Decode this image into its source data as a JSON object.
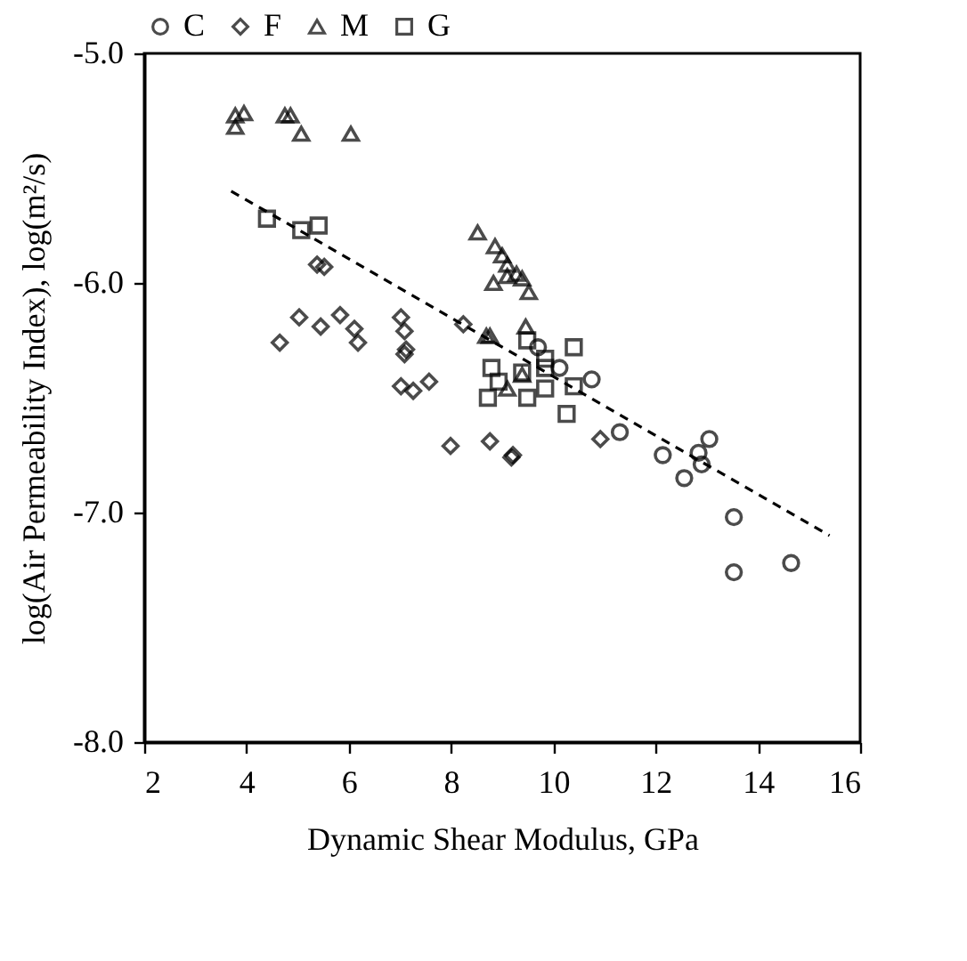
{
  "chart_data": {
    "type": "scatter",
    "xlabel": "Dynamic Shear Modulus, GPa",
    "ylabel": "log(Air Permeability Index), log(m²/s)",
    "xlim": [
      2,
      16
    ],
    "xticks": [
      2,
      4,
      6,
      8,
      10,
      12,
      14,
      16
    ],
    "ylim": [
      -8,
      -5
    ],
    "yticks": [
      {
        "value": -8,
        "label": "-8.0"
      },
      {
        "value": -7,
        "label": "-7.0"
      },
      {
        "value": -6,
        "label": "-6.0"
      },
      {
        "value": -5,
        "label": "-5.0"
      }
    ],
    "grid": false,
    "legend": "top",
    "series": [
      {
        "name": "C",
        "color": "#000000",
        "marker": "circle",
        "x": [
          10.12,
          10.75,
          11.3,
          12.14,
          12.84,
          13.05,
          12.9,
          12.56,
          13.53,
          13.53,
          14.65,
          9.7
        ],
        "values": [
          -6.37,
          -6.42,
          -6.65,
          -6.75,
          -6.74,
          -6.68,
          -6.79,
          -6.85,
          -7.02,
          -7.26,
          -7.22,
          -6.28
        ]
      },
      {
        "name": "F",
        "color": "#000000",
        "marker": "diamond",
        "x": [
          5.38,
          5.52,
          4.65,
          5.03,
          5.45,
          5.83,
          6.11,
          6.18,
          7.02,
          7.09,
          7.12,
          7.09,
          7.02,
          7.26,
          7.57,
          7.99,
          8.76,
          9.18,
          9.21,
          8.24,
          10.92
        ],
        "values": [
          -5.92,
          -5.93,
          -6.26,
          -6.15,
          -6.19,
          -6.14,
          -6.2,
          -6.26,
          -6.15,
          -6.21,
          -6.29,
          -6.31,
          -6.45,
          -6.47,
          -6.43,
          -6.71,
          -6.69,
          -6.76,
          -6.75,
          -6.18,
          -6.68
        ]
      },
      {
        "name": "M",
        "color": "#000000",
        "marker": "triangle",
        "x": [
          3.78,
          3.78,
          3.95,
          4.75,
          4.86,
          5.07,
          6.04,
          8.52,
          8.86,
          9.0,
          9.1,
          9.28,
          9.39,
          9.52,
          8.83,
          9.1,
          8.76,
          9.46,
          9.39,
          9.1,
          8.69
        ],
        "values": [
          -5.27,
          -5.32,
          -5.26,
          -5.27,
          -5.27,
          -5.35,
          -5.35,
          -5.78,
          -5.84,
          -5.88,
          -5.92,
          -5.96,
          -5.98,
          -6.04,
          -6.0,
          -5.97,
          -6.23,
          -6.19,
          -6.4,
          -6.46,
          -6.23
        ]
      },
      {
        "name": "G",
        "color": "#000000",
        "marker": "square",
        "x": [
          4.4,
          5.07,
          5.41,
          9.49,
          10.4,
          8.79,
          9.84,
          9.84,
          9.39,
          8.93,
          9.84,
          10.4,
          8.72,
          9.49,
          10.26
        ],
        "values": [
          -5.72,
          -5.77,
          -5.75,
          -6.25,
          -6.28,
          -6.37,
          -6.33,
          -6.37,
          -6.39,
          -6.43,
          -6.46,
          -6.45,
          -6.5,
          -6.5,
          -6.57
        ]
      },
      {
        "type": "line",
        "color": "#000000",
        "line_style": "dashed",
        "marker": "none",
        "x": [
          3.7,
          15.4
        ],
        "values": [
          -5.6,
          -7.1
        ]
      }
    ]
  }
}
